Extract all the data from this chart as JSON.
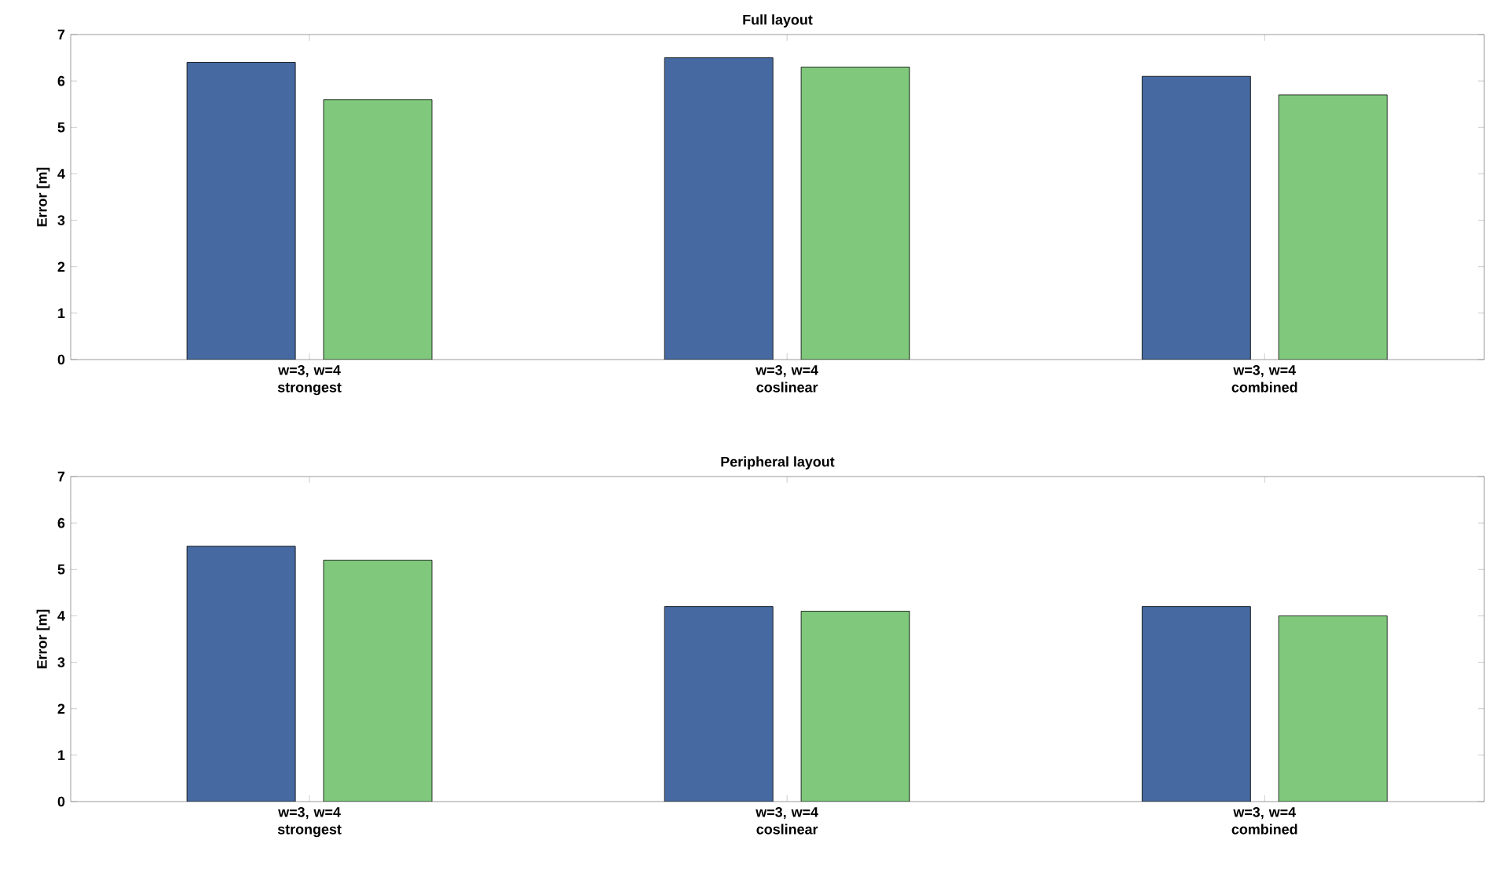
{
  "chart_data": [
    {
      "type": "bar",
      "title": "Full layout",
      "ylabel": "Error [m]",
      "categories": [
        "w=3, w=4 strongest",
        "w=3, w=4 coslinear",
        "w=3, w=4 combined"
      ],
      "series": [
        {
          "color": "#4569a0",
          "values": [
            6.4,
            6.5,
            6.1
          ]
        },
        {
          "color": "#80c97c",
          "values": [
            5.6,
            6.3,
            5.7
          ]
        }
      ],
      "ylim": [
        0,
        7
      ],
      "yticks": [
        0,
        1,
        2,
        3,
        4,
        5,
        6,
        7
      ],
      "grid": false
    },
    {
      "type": "bar",
      "title": "Peripheral layout",
      "ylabel": "Error [m]",
      "categories": [
        "w=3, w=4 strongest",
        "w=3, w=4 coslinear",
        "w=3, w=4 combined"
      ],
      "series": [
        {
          "color": "#4569a0",
          "values": [
            5.5,
            4.2,
            4.2
          ]
        },
        {
          "color": "#80c97c",
          "values": [
            5.2,
            4.1,
            4.0
          ]
        }
      ],
      "ylim": [
        0,
        7
      ],
      "yticks": [
        0,
        1,
        2,
        3,
        4,
        5,
        6,
        7
      ],
      "grid": false
    }
  ]
}
